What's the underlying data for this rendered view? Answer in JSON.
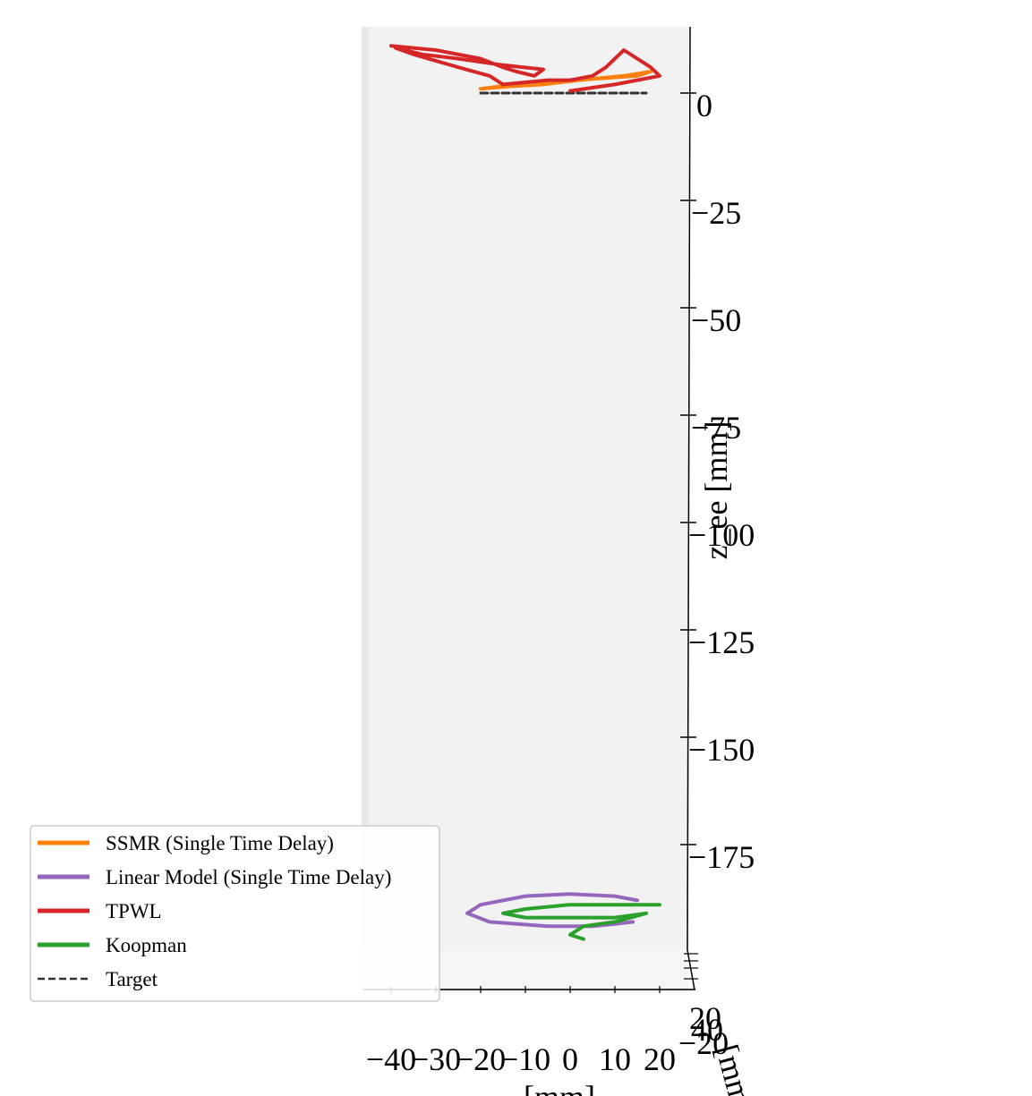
{
  "chart_data": {
    "type": "line",
    "projection": "3d",
    "axes": {
      "x": {
        "label": "[mm]",
        "ticks": [
          -40,
          -30,
          -20,
          -10,
          0,
          10,
          20
        ],
        "tick_labels": [
          "−40",
          "−30",
          "−20",
          "−10",
          "0",
          "10",
          "20"
        ]
      },
      "y": {
        "label": "[mm]",
        "ticks": [
          20,
          40,
          -20
        ],
        "tick_labels": [
          "20",
          "40",
          "−20"
        ]
      },
      "z": {
        "label": "z_ee [mm]",
        "ticks": [
          0,
          -25,
          -50,
          -75,
          -100,
          -125,
          -150,
          -175
        ],
        "tick_labels": [
          "0",
          "−25",
          "−50",
          "−75",
          "−100",
          "−125",
          "−150",
          "−175"
        ],
        "range": [
          -200,
          15
        ]
      }
    },
    "legend": {
      "placement": "lower-left",
      "entries": [
        {
          "name": "SSMR (Single Time Delay)",
          "color": "#ff7f0e",
          "style": "solid"
        },
        {
          "name": "Linear Model (Single Time Delay)",
          "color": "#9467bd",
          "style": "solid"
        },
        {
          "name": "TPWL",
          "color": "#d62728",
          "style": "solid"
        },
        {
          "name": "Koopman",
          "color": "#2ca02c",
          "style": "solid"
        },
        {
          "name": "Target",
          "color": "#333333",
          "style": "dashed"
        }
      ]
    },
    "series": [
      {
        "name": "Target",
        "color": "#333333",
        "style": "dashed",
        "note_z_level": 0,
        "x": [
          -20,
          -10,
          0,
          10,
          17
        ],
        "z": [
          0,
          0,
          0,
          0,
          0
        ]
      },
      {
        "name": "SSMR (Single Time Delay)",
        "color": "#ff7f0e",
        "style": "solid",
        "x": [
          -20,
          -12,
          -5,
          0,
          8,
          15,
          18,
          12,
          2,
          -6,
          -14,
          -20
        ],
        "z": [
          1,
          2,
          2.5,
          3,
          3.5,
          4,
          5,
          4,
          3,
          2,
          1.5,
          1
        ]
      },
      {
        "name": "TPWL",
        "color": "#d62728",
        "style": "solid",
        "x": [
          -40,
          -30,
          -20,
          -15,
          -12,
          -8,
          -6,
          -15,
          -25,
          -33,
          -39,
          -35,
          -25,
          -18,
          -15,
          -10,
          -5,
          0,
          5,
          8,
          10,
          12,
          15,
          18,
          20,
          15,
          10,
          0
        ],
        "z": [
          11,
          10,
          8,
          6,
          5,
          4,
          5.5,
          6.5,
          8,
          9,
          10.5,
          9,
          6,
          4,
          2,
          2.5,
          3,
          3,
          4,
          6,
          8,
          10,
          8,
          6,
          4,
          3,
          2,
          0.5
        ]
      },
      {
        "name": "Linear Model (Single Time Delay)",
        "color": "#9467bd",
        "style": "solid",
        "x": [
          15,
          10,
          0,
          -10,
          -20,
          -23,
          -18,
          -5,
          5,
          10,
          14
        ],
        "z": [
          -188,
          -187,
          -186.5,
          -187,
          -189,
          -191,
          -193,
          -194,
          -194,
          -193.5,
          -193
        ]
      },
      {
        "name": "Koopman",
        "color": "#2ca02c",
        "style": "solid",
        "x": [
          20,
          10,
          0,
          -10,
          -15,
          -10,
          0,
          10,
          17,
          10,
          3,
          0,
          3
        ],
        "z": [
          -189,
          -189,
          -189,
          -190,
          -191,
          -192,
          -192,
          -192,
          -191,
          -193,
          -194,
          -196,
          -197
        ]
      }
    ]
  }
}
